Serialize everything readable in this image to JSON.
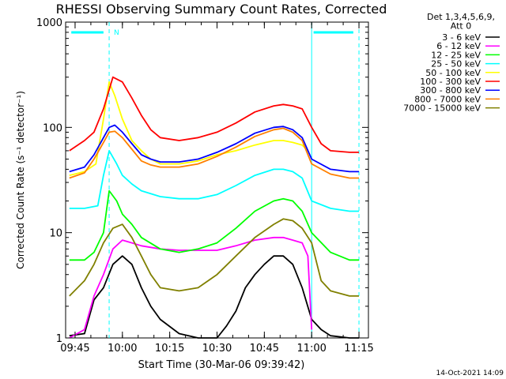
{
  "chart_data": {
    "type": "line",
    "title": "RHESSI Observing Summary Count Rates, Corrected",
    "xlabel": "Start Time (30-Mar-06 09:39:42)",
    "ylabel": "Corrected Count Rate (s⁻¹ detector⁻¹)",
    "y_scale": "log",
    "ylim": [
      1,
      1000
    ],
    "xlim": [
      9.7,
      11.3
    ],
    "x_ticks": [
      {
        "value": 9.75,
        "label": "09:45"
      },
      {
        "value": 10.0,
        "label": "10:00"
      },
      {
        "value": 10.25,
        "label": "10:15"
      },
      {
        "value": 10.5,
        "label": "10:30"
      },
      {
        "value": 10.75,
        "label": "10:45"
      },
      {
        "value": 11.0,
        "label": "11:00"
      },
      {
        "value": 11.25,
        "label": "11:15"
      }
    ],
    "y_ticks": [
      {
        "value": 1,
        "label": "1"
      },
      {
        "value": 10,
        "label": "10"
      },
      {
        "value": 100,
        "label": "100"
      },
      {
        "value": 1000,
        "label": "1000"
      }
    ],
    "legend_header": [
      "Det 1,3,4,5,6,9,",
      "Att 0"
    ],
    "legend_position": "right",
    "night_marker": "N",
    "night_bars": [
      [
        9.73,
        9.9
      ],
      [
        11.01,
        11.22
      ]
    ],
    "event_lines": [
      9.93,
      11.0,
      11.25
    ],
    "footer_date": "14-Oct-2021 14:09",
    "series": [
      {
        "name": "3 - 6 keV",
        "color": "#000000",
        "x": [
          9.72,
          9.8,
          9.85,
          9.9,
          9.95,
          10.0,
          10.05,
          10.1,
          10.15,
          10.2,
          10.3,
          10.4,
          10.5,
          10.55,
          10.6,
          10.65,
          10.7,
          10.75,
          10.8,
          10.85,
          10.9,
          10.95,
          11.0,
          11.05,
          11.1,
          11.2,
          11.25
        ],
        "y": [
          1.05,
          1.1,
          2.3,
          3.0,
          5.0,
          6.0,
          5.0,
          3.0,
          2.0,
          1.5,
          1.1,
          1.0,
          1.0,
          1.3,
          1.8,
          3.0,
          4.0,
          5.0,
          6.0,
          6.0,
          5.0,
          3.0,
          1.5,
          1.2,
          1.05,
          1.0,
          1.0
        ]
      },
      {
        "name": "6 - 12 keV",
        "color": "#ff00ff",
        "x": [
          9.72,
          9.8,
          9.85,
          9.9,
          9.95,
          10.0,
          10.05,
          10.1,
          10.2,
          10.3,
          10.4,
          10.5,
          10.6,
          10.7,
          10.8,
          10.85,
          10.9,
          10.95,
          10.98,
          11.0
        ],
        "y": [
          1.0,
          1.2,
          2.5,
          4.0,
          7.0,
          8.5,
          8.0,
          7.5,
          7.0,
          6.8,
          6.8,
          6.8,
          7.5,
          8.5,
          9.0,
          9.0,
          8.5,
          8.0,
          6.0,
          1.2
        ]
      },
      {
        "name": "12 - 25 keV",
        "color": "#00ff00",
        "x": [
          9.72,
          9.8,
          9.85,
          9.9,
          9.93,
          9.97,
          10.0,
          10.05,
          10.1,
          10.2,
          10.3,
          10.4,
          10.5,
          10.6,
          10.7,
          10.8,
          10.85,
          10.9,
          10.95,
          11.0,
          11.1,
          11.2,
          11.25
        ],
        "y": [
          5.5,
          5.5,
          6.5,
          10.0,
          25.0,
          20.0,
          15.0,
          12.0,
          9.0,
          7.0,
          6.5,
          7.0,
          8.0,
          11.0,
          16.0,
          20.0,
          21.0,
          20.0,
          16.0,
          10.0,
          6.5,
          5.5,
          5.5
        ]
      },
      {
        "name": "25 - 50 keV",
        "color": "#00ffff",
        "x": [
          9.72,
          9.8,
          9.87,
          9.9,
          9.93,
          9.97,
          10.0,
          10.05,
          10.1,
          10.2,
          10.3,
          10.4,
          10.5,
          10.6,
          10.7,
          10.8,
          10.85,
          10.9,
          10.95,
          11.0,
          11.1,
          11.2,
          11.25
        ],
        "y": [
          17.0,
          17.0,
          18.0,
          35.0,
          60.0,
          45.0,
          35.0,
          29.0,
          25.0,
          22.0,
          21.0,
          21.0,
          23.0,
          28.0,
          35.0,
          40.0,
          40.0,
          38.0,
          33.0,
          20.0,
          17.0,
          16.0,
          16.0
        ]
      },
      {
        "name": "50 - 100 keV",
        "color": "#ffff00",
        "x": [
          9.72,
          9.8,
          9.86,
          9.9,
          9.93,
          9.96,
          10.0,
          10.05,
          10.1,
          10.15,
          10.2,
          10.3,
          10.4,
          10.5,
          10.6,
          10.7,
          10.8,
          10.85,
          10.9,
          10.95,
          10.98
        ],
        "y": [
          35.0,
          38.0,
          45.0,
          120.0,
          270.0,
          200.0,
          120.0,
          75.0,
          60.0,
          50.0,
          45.0,
          45.0,
          48.0,
          55.0,
          60.0,
          68.0,
          75.0,
          75.0,
          72.0,
          68.0,
          60.0
        ]
      },
      {
        "name": "100 - 300 keV",
        "color": "#ff0000",
        "x": [
          9.72,
          9.8,
          9.85,
          9.9,
          9.95,
          10.0,
          10.05,
          10.1,
          10.15,
          10.2,
          10.3,
          10.4,
          10.5,
          10.6,
          10.7,
          10.8,
          10.85,
          10.9,
          10.95,
          11.0,
          11.05,
          11.1,
          11.2,
          11.25
        ],
        "y": [
          60.0,
          75.0,
          90.0,
          150.0,
          300.0,
          270.0,
          190.0,
          130.0,
          95.0,
          80.0,
          75.0,
          80.0,
          90.0,
          110.0,
          140.0,
          160.0,
          165.0,
          160.0,
          150.0,
          100.0,
          70.0,
          60.0,
          58.0,
          58.0
        ]
      },
      {
        "name": "300 - 800 keV",
        "color": "#0000ff",
        "x": [
          9.72,
          9.8,
          9.85,
          9.9,
          9.93,
          9.96,
          10.0,
          10.05,
          10.1,
          10.15,
          10.2,
          10.3,
          10.4,
          10.5,
          10.6,
          10.7,
          10.8,
          10.85,
          10.9,
          10.95,
          11.0,
          11.1,
          11.2,
          11.25
        ],
        "y": [
          38.0,
          42.0,
          55.0,
          80.0,
          100.0,
          105.0,
          90.0,
          70.0,
          55.0,
          50.0,
          47.0,
          47.0,
          50.0,
          58.0,
          70.0,
          88.0,
          100.0,
          102.0,
          95.0,
          80.0,
          50.0,
          40.0,
          38.0,
          38.0
        ]
      },
      {
        "name": "800 - 7000 keV",
        "color": "#ff8000",
        "x": [
          9.72,
          9.8,
          9.85,
          9.9,
          9.93,
          9.96,
          10.0,
          10.05,
          10.1,
          10.15,
          10.2,
          10.3,
          10.4,
          10.5,
          10.6,
          10.7,
          10.8,
          10.85,
          10.9,
          10.95,
          11.0,
          11.1,
          11.2,
          11.25
        ],
        "y": [
          33.0,
          37.0,
          50.0,
          72.0,
          90.0,
          92.0,
          80.0,
          62.0,
          48.0,
          44.0,
          42.0,
          42.0,
          45.0,
          53.0,
          65.0,
          82.0,
          95.0,
          98.0,
          90.0,
          75.0,
          45.0,
          36.0,
          33.0,
          33.0
        ]
      },
      {
        "name": "7000 - 15000 keV",
        "color": "#808000",
        "x": [
          9.72,
          9.8,
          9.85,
          9.9,
          9.95,
          10.0,
          10.05,
          10.1,
          10.15,
          10.2,
          10.3,
          10.4,
          10.5,
          10.6,
          10.7,
          10.8,
          10.85,
          10.9,
          10.95,
          11.0,
          11.05,
          11.1,
          11.2,
          11.25
        ],
        "y": [
          2.5,
          3.5,
          5.0,
          8.0,
          11.0,
          12.0,
          9.0,
          6.0,
          4.0,
          3.0,
          2.8,
          3.0,
          4.0,
          6.0,
          9.0,
          12.0,
          13.5,
          13.0,
          11.0,
          8.0,
          3.5,
          2.8,
          2.5,
          2.5
        ]
      }
    ]
  }
}
